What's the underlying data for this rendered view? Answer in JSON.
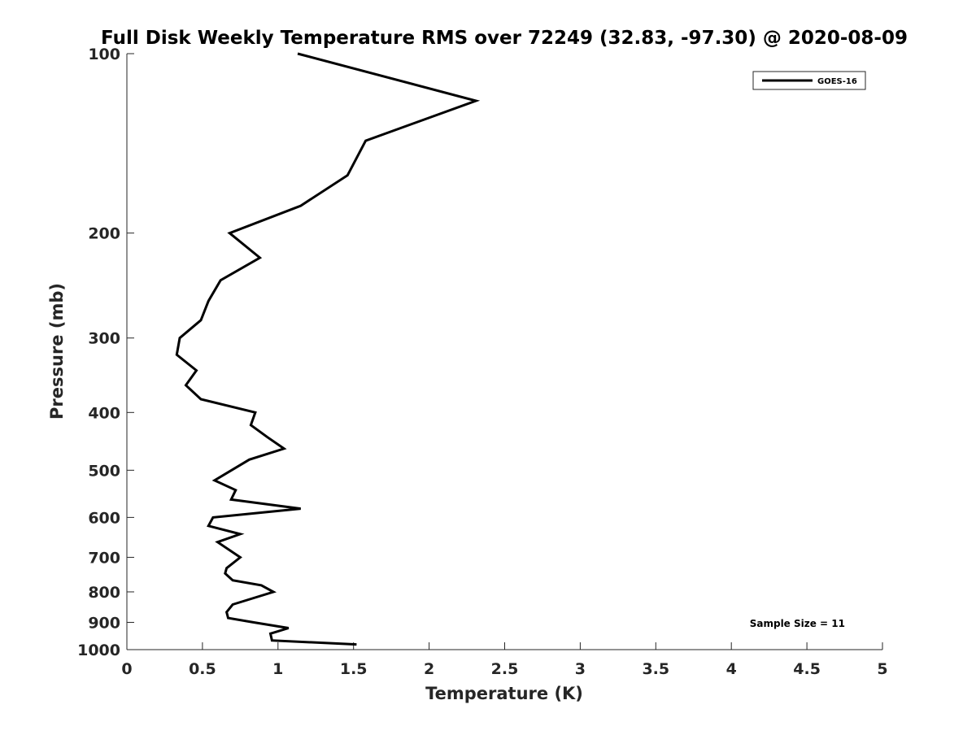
{
  "chart_data": {
    "type": "line",
    "title": "Full Disk Weekly Temperature RMS over 72249 (32.83, -97.30) @ 2020-08-09",
    "xlabel": "Temperature (K)",
    "ylabel": "Pressure (mb)",
    "xlim": [
      0,
      5
    ],
    "ylim": [
      100,
      1000
    ],
    "yscale": "log",
    "y_reversed": true,
    "xticks": [
      "0",
      "0.5",
      "1",
      "1.5",
      "2",
      "2.5",
      "3",
      "3.5",
      "4",
      "4.5",
      "5"
    ],
    "xtick_values": [
      0,
      0.5,
      1,
      1.5,
      2,
      2.5,
      3,
      3.5,
      4,
      4.5,
      5
    ],
    "yticks": [
      "100",
      "200",
      "300",
      "400",
      "500",
      "600",
      "700",
      "800",
      "900",
      "1000"
    ],
    "ytick_values": [
      100,
      200,
      300,
      400,
      500,
      600,
      700,
      800,
      900,
      1000
    ],
    "legend": {
      "placement": "top-right",
      "entries": [
        "GOES-16"
      ]
    },
    "annotation": "Sample Size = 11",
    "series": [
      {
        "name": "GOES-16",
        "color": "#000000",
        "points": [
          [
            1.13,
            100
          ],
          [
            2.31,
            120
          ],
          [
            1.58,
            140
          ],
          [
            1.46,
            160
          ],
          [
            1.15,
            180
          ],
          [
            0.68,
            200
          ],
          [
            0.88,
            220
          ],
          [
            0.62,
            240
          ],
          [
            0.54,
            260
          ],
          [
            0.49,
            280
          ],
          [
            0.35,
            300
          ],
          [
            0.33,
            320
          ],
          [
            0.46,
            340
          ],
          [
            0.39,
            360
          ],
          [
            0.49,
            380
          ],
          [
            0.85,
            400
          ],
          [
            0.82,
            420
          ],
          [
            0.93,
            440
          ],
          [
            1.04,
            460
          ],
          [
            0.81,
            480
          ],
          [
            0.58,
            520
          ],
          [
            0.72,
            540
          ],
          [
            0.69,
            560
          ],
          [
            1.15,
            580
          ],
          [
            0.57,
            600
          ],
          [
            0.54,
            620
          ],
          [
            0.75,
            640
          ],
          [
            0.6,
            660
          ],
          [
            0.75,
            700
          ],
          [
            0.66,
            730
          ],
          [
            0.65,
            745
          ],
          [
            0.7,
            765
          ],
          [
            0.89,
            780
          ],
          [
            0.97,
            800
          ],
          [
            0.7,
            840
          ],
          [
            0.66,
            865
          ],
          [
            0.67,
            885
          ],
          [
            0.84,
            900
          ],
          [
            1.07,
            920
          ],
          [
            0.95,
            940
          ],
          [
            0.96,
            965
          ],
          [
            1.52,
            980
          ]
        ]
      }
    ]
  }
}
